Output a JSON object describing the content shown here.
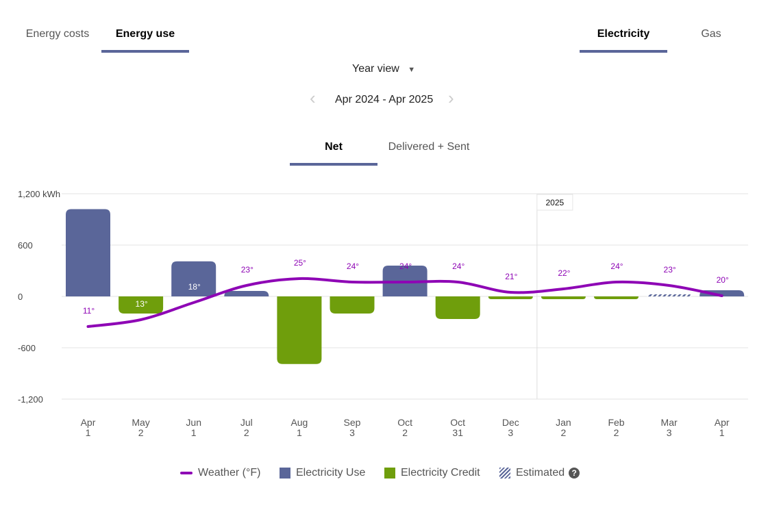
{
  "top_tabs": [
    {
      "label": "Energy costs",
      "active": false
    },
    {
      "label": "Energy use",
      "active": true
    }
  ],
  "fuel_tabs": [
    {
      "label": "Electricity",
      "active": true
    },
    {
      "label": "Gas",
      "active": false
    }
  ],
  "view_select": {
    "value": "Year view",
    "icon": "caret-down-icon"
  },
  "date_range": {
    "label": "Apr 2024 - Apr 2025",
    "prev_icon": "chevron-left-icon",
    "next_icon": "chevron-right-icon"
  },
  "mode_tabs": [
    {
      "label": "Net",
      "active": true
    },
    {
      "label": "Delivered + Sent",
      "active": false
    }
  ],
  "colors": {
    "accent": "#5a6699",
    "use": "#5a6699",
    "credit": "#6f9e0c",
    "weather": "#8e05b5"
  },
  "chart_data": {
    "type": "bar",
    "ylabel": "",
    "yunit": "kWh",
    "ylim": [
      -1200,
      1200
    ],
    "yticks": [
      "1,200 kWh",
      "600",
      "0",
      "-600",
      "-1,200"
    ],
    "ytick_values": [
      1200,
      600,
      0,
      -600,
      -1200
    ],
    "grid": true,
    "year_marker": {
      "label": "2025",
      "before_index": 9
    },
    "categories": [
      [
        "Apr",
        "1"
      ],
      [
        "May",
        "2"
      ],
      [
        "Jun",
        "1"
      ],
      [
        "Jul",
        "2"
      ],
      [
        "Aug",
        "1"
      ],
      [
        "Sep",
        "3"
      ],
      [
        "Oct",
        "2"
      ],
      [
        "Oct",
        "31"
      ],
      [
        "Dec",
        "3"
      ],
      [
        "Jan",
        "2"
      ],
      [
        "Feb",
        "2"
      ],
      [
        "Mar",
        "3"
      ],
      [
        "Apr",
        "1"
      ]
    ],
    "series": [
      {
        "name": "Electricity Use / Credit (net kWh)",
        "values": [
          1020,
          -200,
          410,
          64,
          -790,
          -200,
          360,
          -264,
          -32,
          -32,
          -32,
          24,
          72
        ],
        "estimated": [
          false,
          false,
          false,
          false,
          false,
          false,
          false,
          false,
          false,
          false,
          false,
          true,
          false
        ]
      },
      {
        "name": "Weather (°F)",
        "type": "line",
        "values": [
          11,
          13,
          18,
          23,
          25,
          24,
          24,
          24,
          21,
          22,
          24,
          23,
          20
        ],
        "labels": [
          "11°",
          "13°",
          "18°",
          "23°",
          "25°",
          "24°",
          "24°",
          "24°",
          "21°",
          "22°",
          "24°",
          "23°",
          "20°"
        ]
      }
    ],
    "legend": {
      "position": "bottom",
      "items": [
        {
          "label": "Weather (°F)",
          "icon": "line"
        },
        {
          "label": "Electricity Use",
          "icon": "square-blue"
        },
        {
          "label": "Electricity Credit",
          "icon": "square-green"
        },
        {
          "label": "Estimated",
          "icon": "hatched-square",
          "help_icon": "question-circle-icon"
        }
      ]
    }
  }
}
